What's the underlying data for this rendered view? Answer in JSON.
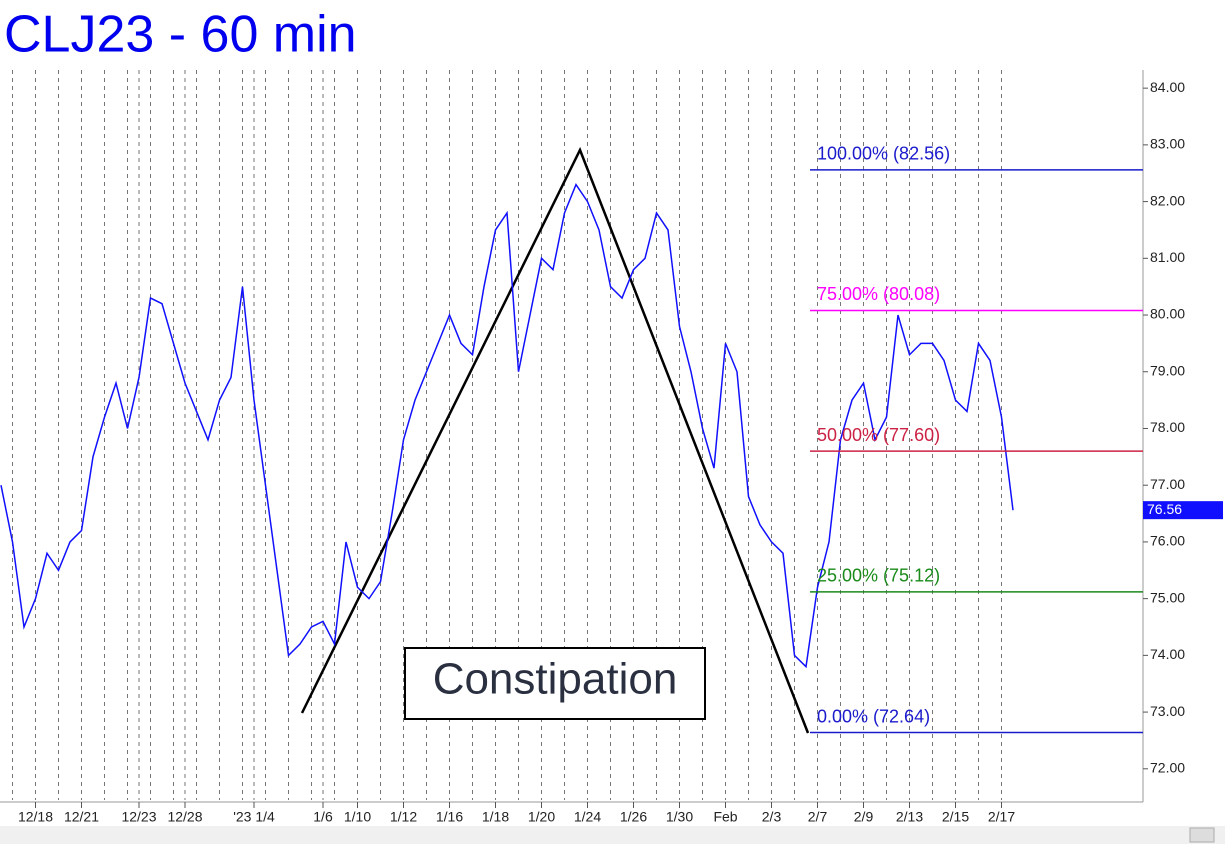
{
  "chart_data": {
    "type": "line",
    "title": "CLJ23 - 60 min",
    "color": "#1010ff",
    "categories": [
      null,
      null,
      null,
      "12/18",
      null,
      null,
      null,
      "12/21",
      null,
      null,
      null,
      null,
      "12/23",
      null,
      null,
      null,
      "12/28",
      null,
      null,
      null,
      null,
      null,
      "'23 1/4",
      null,
      null,
      null,
      null,
      null,
      "1/6",
      null,
      null,
      "1/10",
      null,
      null,
      null,
      "1/12",
      null,
      null,
      null,
      "1/16",
      null,
      null,
      null,
      "1/18",
      null,
      null,
      null,
      "1/20",
      null,
      null,
      null,
      "1/24",
      null,
      null,
      null,
      "1/26",
      null,
      null,
      null,
      "1/30",
      null,
      null,
      null,
      "Feb",
      null,
      null,
      null,
      "2/3",
      null,
      null,
      null,
      "2/7",
      null,
      null,
      null,
      "2/9",
      null,
      null,
      null,
      "2/13",
      null,
      null,
      null,
      "2/15",
      null,
      null,
      null,
      "2/17",
      null
    ],
    "values": [
      77.0,
      76.0,
      74.5,
      75.0,
      75.8,
      75.5,
      76.0,
      76.2,
      77.5,
      78.2,
      78.8,
      78.0,
      78.9,
      80.3,
      80.2,
      79.5,
      78.8,
      78.3,
      77.8,
      78.5,
      78.9,
      80.5,
      78.5,
      77.0,
      75.5,
      74.0,
      74.2,
      74.5,
      74.6,
      74.2,
      76.0,
      75.2,
      75.0,
      75.3,
      76.5,
      77.8,
      78.5,
      79.0,
      79.5,
      80.0,
      79.5,
      79.3,
      80.5,
      81.5,
      81.8,
      79.0,
      80.0,
      81.0,
      80.8,
      81.8,
      82.3,
      82.0,
      81.5,
      80.5,
      80.3,
      80.8,
      81.0,
      81.8,
      81.5,
      79.8,
      79.0,
      78.0,
      77.3,
      79.5,
      79.0,
      76.8,
      76.3,
      76.0,
      75.8,
      74.0,
      73.8,
      75.2,
      76.0,
      77.8,
      78.5,
      78.8,
      77.8,
      78.2,
      80.0,
      79.3,
      79.5,
      79.5,
      79.2,
      78.5,
      78.3,
      79.5,
      79.2,
      78.2,
      76.56
    ],
    "last_value": {
      "value": 76.56,
      "label": "76.56"
    },
    "ylim": [
      71.45,
      84.32
    ],
    "yticks": [
      {
        "value": 72,
        "label": "72.00"
      },
      {
        "value": 73,
        "label": "73.00"
      },
      {
        "value": 74,
        "label": "74.00"
      },
      {
        "value": 75,
        "label": "75.00"
      },
      {
        "value": 76,
        "label": "76.00"
      },
      {
        "value": 77,
        "label": "77.00"
      },
      {
        "value": 78,
        "label": "78.00"
      },
      {
        "value": 79,
        "label": "79.00"
      },
      {
        "value": 80,
        "label": "80.00"
      },
      {
        "value": 81,
        "label": "81.00"
      },
      {
        "value": 82,
        "label": "82.00"
      },
      {
        "value": 83,
        "label": "83.00"
      },
      {
        "value": 84,
        "label": "84.00"
      }
    ],
    "levels": [
      {
        "label": "100.00% (82.56)",
        "value": 82.56,
        "color": "#1a1acc"
      },
      {
        "label": "75.00% (80.08)",
        "value": 80.08,
        "color": "#ff00ff"
      },
      {
        "label": "50.00% (77.60)",
        "value": 77.6,
        "color": "#cc2244"
      },
      {
        "label": "25.00% (75.12)",
        "value": 75.12,
        "color": "#1a8a1a"
      },
      {
        "label": "0.00% (72.64)",
        "value": 72.64,
        "color": "#1a1acc"
      }
    ],
    "annotation": "Constipation"
  }
}
